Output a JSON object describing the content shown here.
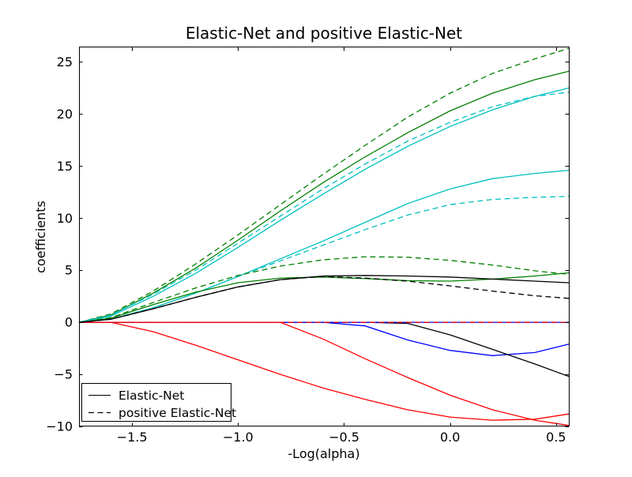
{
  "chart_data": {
    "type": "line",
    "title": "Elastic-Net and positive Elastic-Net",
    "xlabel": "-Log(alpha)",
    "ylabel": "coefficients",
    "xlim": [
      -1.75,
      0.56
    ],
    "ylim": [
      -10,
      26.4
    ],
    "grid": false,
    "x_ticks": [
      -1.5,
      -1.0,
      -0.5,
      0.0,
      0.5
    ],
    "x_tick_labels": [
      "−1.5",
      "−1.0",
      "−0.5",
      "0.0",
      "0.5"
    ],
    "y_ticks": [
      -10,
      -5,
      0,
      5,
      10,
      15,
      20,
      25
    ],
    "y_tick_labels": [
      "−10",
      "−5",
      "0",
      "5",
      "10",
      "15",
      "20",
      "25"
    ],
    "legend": {
      "position": "lower left",
      "entries": [
        {
          "label": "Elastic-Net",
          "style": "solid",
          "color": "#000000"
        },
        {
          "label": "positive Elastic-Net",
          "style": "dashed",
          "color": "#000000"
        }
      ]
    },
    "x": [
      -1.75,
      -1.6,
      -1.4,
      -1.2,
      -1.0,
      -0.8,
      -0.6,
      -0.4,
      -0.2,
      0.0,
      0.2,
      0.4,
      0.56
    ],
    "series": [
      {
        "name": "enet-coef-1-blue",
        "color": "#0000ff",
        "style": "solid",
        "values": [
          0,
          0,
          0,
          0,
          0,
          0,
          0,
          -0.35,
          -1.7,
          -2.7,
          -3.2,
          -2.9,
          -2.1
        ]
      },
      {
        "name": "pos-enet-coef-1-blue",
        "color": "#0000ff",
        "style": "dashed",
        "values": [
          0,
          0,
          0,
          0,
          0,
          0,
          0,
          0,
          0,
          0,
          0,
          0,
          0
        ]
      },
      {
        "name": "enet-coef-2-red",
        "color": "#ff0000",
        "style": "solid",
        "values": [
          0,
          0,
          -0.9,
          -2.2,
          -3.6,
          -5.0,
          -6.3,
          -7.4,
          -8.4,
          -9.1,
          -9.4,
          -9.3,
          -8.8
        ]
      },
      {
        "name": "pos-enet-coef-2-red",
        "color": "#ff0000",
        "style": "dashed",
        "values": [
          0,
          0,
          0,
          0,
          0,
          0,
          0,
          0,
          0,
          0,
          0,
          0,
          0
        ]
      },
      {
        "name": "enet-coef-3-green",
        "color": "#008000",
        "style": "solid",
        "values": [
          0,
          0.7,
          2.8,
          5.2,
          7.9,
          10.7,
          13.4,
          15.9,
          18.2,
          20.3,
          22.0,
          23.3,
          24.1
        ]
      },
      {
        "name": "pos-enet-coef-3-green",
        "color": "#008000",
        "style": "dashed",
        "values": [
          0,
          0.8,
          3.0,
          5.6,
          8.4,
          11.3,
          14.2,
          17.0,
          19.7,
          22.0,
          23.9,
          25.3,
          26.3
        ]
      },
      {
        "name": "enet-coef-4-cyan",
        "color": "#00bfbf",
        "style": "solid",
        "values": [
          0,
          0.3,
          1.4,
          2.8,
          4.4,
          6.1,
          7.8,
          9.6,
          11.4,
          12.8,
          13.8,
          14.3,
          14.6
        ]
      },
      {
        "name": "pos-enet-coef-4-cyan",
        "color": "#00bfbf",
        "style": "dashed",
        "values": [
          0,
          0.3,
          1.4,
          2.8,
          4.4,
          5.9,
          7.4,
          8.9,
          10.3,
          11.3,
          11.8,
          12.0,
          12.1
        ]
      },
      {
        "name": "enet-coef-5-black",
        "color": "#000000",
        "style": "solid",
        "values": [
          0,
          0,
          0,
          0,
          0,
          0,
          0,
          0,
          -0.1,
          -1.2,
          -2.6,
          -4.0,
          -5.2
        ]
      },
      {
        "name": "pos-enet-coef-5-black",
        "color": "#000000",
        "style": "dashed",
        "values": [
          0,
          0,
          0,
          0,
          0,
          0,
          0,
          0,
          0,
          0,
          0,
          0,
          0
        ]
      },
      {
        "name": "enet-coef-6-blue",
        "color": "#0000ff",
        "style": "solid",
        "values": [
          0,
          0,
          0,
          0,
          0,
          0,
          0,
          0,
          0,
          0,
          0,
          0,
          0
        ]
      },
      {
        "name": "pos-enet-coef-6-blue",
        "color": "#0000ff",
        "style": "dashed",
        "values": [
          0,
          0,
          0,
          0,
          0,
          0,
          0,
          0,
          0,
          0,
          0,
          0,
          0
        ]
      },
      {
        "name": "enet-coef-7-red",
        "color": "#ff0000",
        "style": "solid",
        "values": [
          0,
          0,
          0,
          0,
          0,
          0,
          -1.6,
          -3.5,
          -5.3,
          -7.0,
          -8.4,
          -9.4,
          -9.9
        ]
      },
      {
        "name": "pos-enet-coef-7-red",
        "color": "#ff0000",
        "style": "dashed",
        "values": [
          0,
          0,
          0,
          0,
          0,
          0,
          0,
          0,
          0,
          0,
          0,
          0,
          0
        ]
      },
      {
        "name": "enet-coef-8-green",
        "color": "#008000",
        "style": "solid",
        "values": [
          0,
          0.4,
          1.7,
          2.9,
          3.8,
          4.25,
          4.35,
          4.2,
          4.0,
          3.95,
          4.15,
          4.45,
          4.75
        ]
      },
      {
        "name": "pos-enet-coef-8-green",
        "color": "#008000",
        "style": "dashed",
        "values": [
          0,
          0.45,
          1.9,
          3.3,
          4.5,
          5.4,
          6.0,
          6.3,
          6.25,
          5.95,
          5.5,
          4.95,
          4.6
        ]
      },
      {
        "name": "enet-coef-9-cyan",
        "color": "#00bfbf",
        "style": "solid",
        "values": [
          0,
          0.6,
          2.5,
          4.7,
          7.2,
          9.8,
          12.3,
          14.7,
          16.9,
          18.8,
          20.4,
          21.7,
          22.5
        ]
      },
      {
        "name": "pos-enet-coef-9-cyan",
        "color": "#00bfbf",
        "style": "dashed",
        "values": [
          0,
          0.7,
          2.7,
          5.0,
          7.6,
          10.2,
          12.8,
          15.2,
          17.4,
          19.2,
          20.7,
          21.7,
          22.1
        ]
      },
      {
        "name": "enet-coef-10-black",
        "color": "#000000",
        "style": "solid",
        "values": [
          0,
          0.3,
          1.3,
          2.4,
          3.4,
          4.1,
          4.45,
          4.5,
          4.45,
          4.35,
          4.15,
          3.95,
          3.8
        ]
      },
      {
        "name": "pos-enet-coef-10-black",
        "color": "#000000",
        "style": "dashed",
        "values": [
          0,
          0.3,
          1.3,
          2.4,
          3.4,
          4.1,
          4.4,
          4.25,
          3.95,
          3.5,
          3.0,
          2.55,
          2.3
        ]
      }
    ]
  }
}
